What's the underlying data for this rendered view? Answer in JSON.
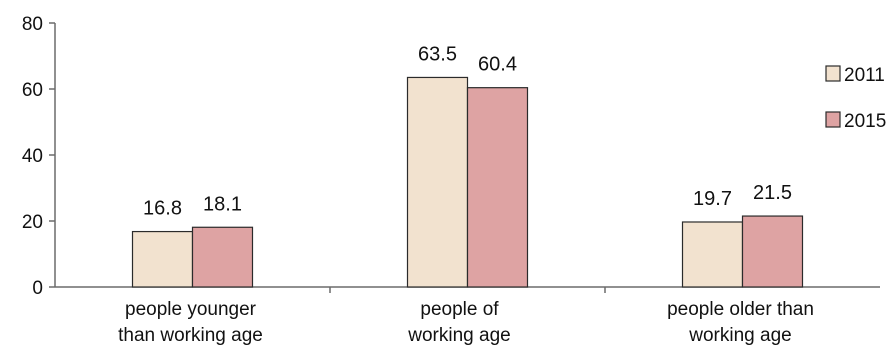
{
  "chart_data": {
    "type": "bar",
    "title": "",
    "xlabel": "",
    "ylabel": "",
    "ylim": [
      0,
      80
    ],
    "yticks": [
      "0",
      "20",
      "40",
      "60",
      "80"
    ],
    "grid": false,
    "legend_position": "right",
    "categories": [
      [
        "people younger",
        "than working age"
      ],
      [
        "people of",
        "working age"
      ],
      [
        "people older than",
        "working age"
      ]
    ],
    "series": [
      {
        "name": "2011",
        "values": [
          16.8,
          63.5,
          19.7
        ],
        "labels": [
          "16.8",
          "63.5",
          "19.7"
        ],
        "color": "#f2e2cf"
      },
      {
        "name": "2015",
        "values": [
          18.1,
          60.4,
          21.5
        ],
        "labels": [
          "18.1",
          "60.4",
          "21.5"
        ],
        "color": "#dea3a3"
      }
    ]
  }
}
